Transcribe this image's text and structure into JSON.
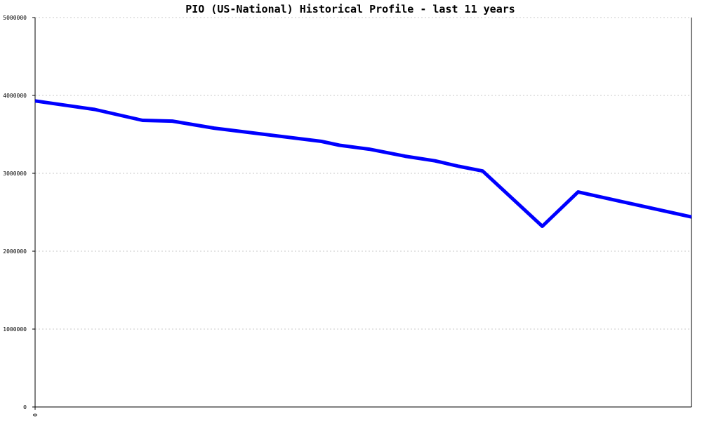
{
  "chart_data": {
    "type": "line",
    "title": "PIO (US-National) Historical Profile - last 11 years",
    "xlabel": "",
    "ylabel": "",
    "x_tick_labels": [
      "0"
    ],
    "y_tick_labels": [
      "0",
      "1000000",
      "2000000",
      "3000000",
      "4000000",
      "5000000"
    ],
    "ylim": [
      0,
      5000000
    ],
    "xlim": [
      0,
      11
    ],
    "grid": true,
    "line_color": "#0000ff",
    "series": [
      {
        "points": [
          [
            0.0,
            3930000
          ],
          [
            1.0,
            3820000
          ],
          [
            1.8,
            3680000
          ],
          [
            2.3,
            3670000
          ],
          [
            3.0,
            3580000
          ],
          [
            4.8,
            3410000
          ],
          [
            5.1,
            3360000
          ],
          [
            5.6,
            3310000
          ],
          [
            6.2,
            3220000
          ],
          [
            6.7,
            3160000
          ],
          [
            7.1,
            3090000
          ],
          [
            7.5,
            3030000
          ],
          [
            8.5,
            2320000
          ],
          [
            9.1,
            2760000
          ],
          [
            11.0,
            2440000
          ]
        ]
      }
    ]
  }
}
